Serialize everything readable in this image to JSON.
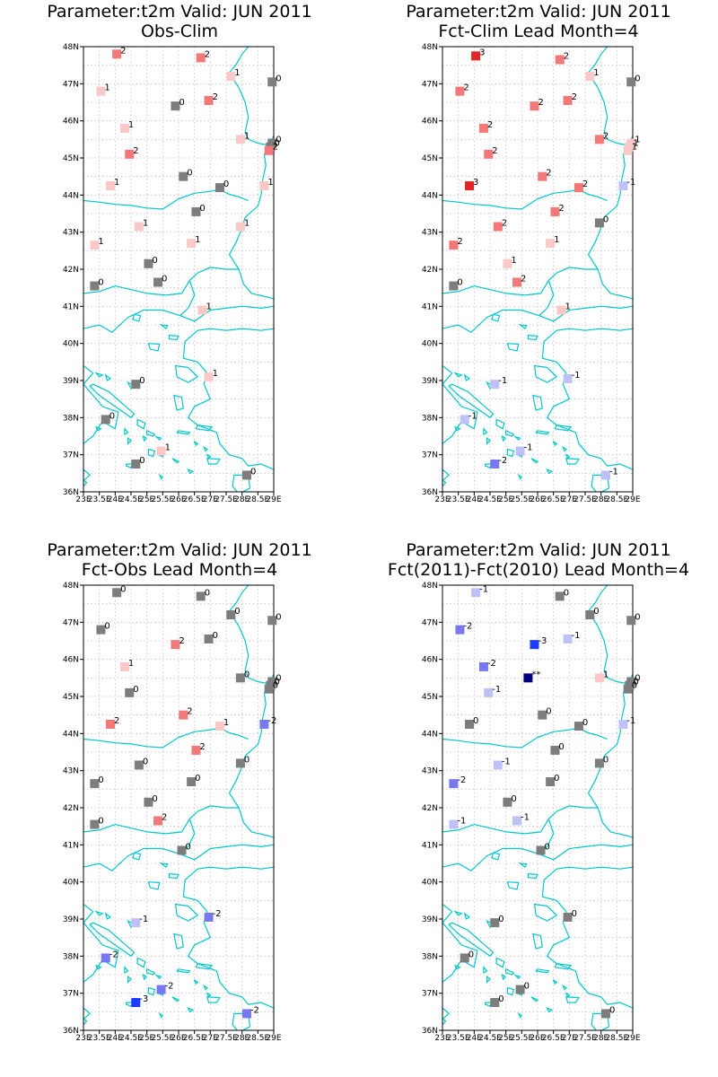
{
  "lat_labels": [
    "48N",
    "47N",
    "46N",
    "45N",
    "44N",
    "43N",
    "42N",
    "41N",
    "40N",
    "39N",
    "38N",
    "37N",
    "36N"
  ],
  "lon_labels": [
    "23E",
    "23.5E",
    "24E",
    "24.5E",
    "25E",
    "25.5E",
    "26E",
    "26.5E",
    "27E",
    "27.5E",
    "28E",
    "28.5E",
    "29E"
  ],
  "domain": {
    "lon": [
      23,
      29
    ],
    "lat": [
      36,
      48
    ]
  },
  "colors": {
    "coast": "#00c8c8",
    "grid": "#b4b4b4",
    "frame": "#000000",
    "m3": "#1e3cff",
    "m2": "#7878f0",
    "m1": "#c0c0f8",
    "z0": "#7d7d7d",
    "p1": "#fbc8c8",
    "p2": "#f57878",
    "p3": "#e12828",
    "na": "#000080"
  },
  "panels": [
    {
      "title_line1": "Parameter:t2m Valid: JUN 2011",
      "title_line2": "Obs-Clim",
      "stations": [
        {
          "lon": 24.05,
          "lat": 47.8,
          "v": "2"
        },
        {
          "lon": 26.7,
          "lat": 47.7,
          "v": "2"
        },
        {
          "lon": 27.65,
          "lat": 47.2,
          "v": "1"
        },
        {
          "lon": 28.95,
          "lat": 47.05,
          "v": "0"
        },
        {
          "lon": 23.55,
          "lat": 46.8,
          "v": "1"
        },
        {
          "lon": 26.95,
          "lat": 46.55,
          "v": "2"
        },
        {
          "lon": 25.9,
          "lat": 46.4,
          "v": "0"
        },
        {
          "lon": 24.3,
          "lat": 45.8,
          "v": "1"
        },
        {
          "lon": 24.45,
          "lat": 45.1,
          "v": "2"
        },
        {
          "lon": 27.95,
          "lat": 45.5,
          "v": "1"
        },
        {
          "lon": 28.95,
          "lat": 45.4,
          "v": "0"
        },
        {
          "lon": 28.9,
          "lat": 45.3,
          "v": "0"
        },
        {
          "lon": 28.85,
          "lat": 45.2,
          "v": "2"
        },
        {
          "lon": 26.15,
          "lat": 44.5,
          "v": "0"
        },
        {
          "lon": 23.85,
          "lat": 44.25,
          "v": "1"
        },
        {
          "lon": 27.3,
          "lat": 44.2,
          "v": "0"
        },
        {
          "lon": 28.7,
          "lat": 44.25,
          "v": "1"
        },
        {
          "lon": 26.55,
          "lat": 43.55,
          "v": "0"
        },
        {
          "lon": 24.75,
          "lat": 43.15,
          "v": "1"
        },
        {
          "lon": 27.95,
          "lat": 43.15,
          "v": "1"
        },
        {
          "lon": 23.35,
          "lat": 42.65,
          "v": "1"
        },
        {
          "lon": 26.4,
          "lat": 42.7,
          "v": "1"
        },
        {
          "lon": 25.05,
          "lat": 42.15,
          "v": "0"
        },
        {
          "lon": 25.35,
          "lat": 41.65,
          "v": "0"
        },
        {
          "lon": 23.35,
          "lat": 41.55,
          "v": "0"
        },
        {
          "lon": 26.75,
          "lat": 40.9,
          "v": "1"
        },
        {
          "lon": 24.65,
          "lat": 38.9,
          "v": "0"
        },
        {
          "lon": 26.95,
          "lat": 39.1,
          "v": "1"
        },
        {
          "lon": 23.7,
          "lat": 37.95,
          "v": "0"
        },
        {
          "lon": 25.45,
          "lat": 37.1,
          "v": "1"
        },
        {
          "lon": 24.65,
          "lat": 36.75,
          "v": "0"
        },
        {
          "lon": 28.15,
          "lat": 36.45,
          "v": "0"
        }
      ]
    },
    {
      "title_line1": "Parameter:t2m Valid: JUN 2011",
      "title_line2": "Fct-Clim Lead Month=4",
      "stations": [
        {
          "lon": 24.05,
          "lat": 47.75,
          "v": "3"
        },
        {
          "lon": 26.7,
          "lat": 47.65,
          "v": "2"
        },
        {
          "lon": 27.65,
          "lat": 47.2,
          "v": "1"
        },
        {
          "lon": 28.95,
          "lat": 47.05,
          "v": "0"
        },
        {
          "lon": 23.55,
          "lat": 46.8,
          "v": "2"
        },
        {
          "lon": 26.95,
          "lat": 46.55,
          "v": "2"
        },
        {
          "lon": 25.9,
          "lat": 46.4,
          "v": "2"
        },
        {
          "lon": 24.3,
          "lat": 45.8,
          "v": "2"
        },
        {
          "lon": 24.45,
          "lat": 45.1,
          "v": "2"
        },
        {
          "lon": 27.95,
          "lat": 45.5,
          "v": "2"
        },
        {
          "lon": 28.95,
          "lat": 45.4,
          "v": "1"
        },
        {
          "lon": 28.9,
          "lat": 45.3,
          "v": "1"
        },
        {
          "lon": 28.85,
          "lat": 45.2,
          "v": "1"
        },
        {
          "lon": 26.15,
          "lat": 44.5,
          "v": "2"
        },
        {
          "lon": 23.85,
          "lat": 44.25,
          "v": "3"
        },
        {
          "lon": 27.3,
          "lat": 44.2,
          "v": "2"
        },
        {
          "lon": 28.7,
          "lat": 44.25,
          "v": "-1"
        },
        {
          "lon": 26.55,
          "lat": 43.55,
          "v": "2"
        },
        {
          "lon": 24.75,
          "lat": 43.15,
          "v": "2"
        },
        {
          "lon": 27.95,
          "lat": 43.25,
          "v": "0"
        },
        {
          "lon": 23.35,
          "lat": 42.65,
          "v": "2"
        },
        {
          "lon": 26.4,
          "lat": 42.7,
          "v": "1"
        },
        {
          "lon": 25.05,
          "lat": 42.15,
          "v": "1"
        },
        {
          "lon": 25.35,
          "lat": 41.65,
          "v": "2"
        },
        {
          "lon": 23.35,
          "lat": 41.55,
          "v": "0"
        },
        {
          "lon": 26.75,
          "lat": 40.9,
          "v": "1"
        },
        {
          "lon": 24.65,
          "lat": 38.9,
          "v": "-1"
        },
        {
          "lon": 26.95,
          "lat": 39.05,
          "v": "-1"
        },
        {
          "lon": 23.7,
          "lat": 37.95,
          "v": "-1"
        },
        {
          "lon": 25.45,
          "lat": 37.1,
          "v": "-1"
        },
        {
          "lon": 24.65,
          "lat": 36.75,
          "v": "-2"
        },
        {
          "lon": 28.15,
          "lat": 36.45,
          "v": "-1"
        }
      ]
    },
    {
      "title_line1": "Parameter:t2m Valid: JUN 2011",
      "title_line2": "Fct-Obs Lead Month=4",
      "stations": [
        {
          "lon": 24.05,
          "lat": 47.8,
          "v": "0"
        },
        {
          "lon": 26.7,
          "lat": 47.7,
          "v": "0"
        },
        {
          "lon": 27.65,
          "lat": 47.2,
          "v": "0"
        },
        {
          "lon": 28.95,
          "lat": 47.05,
          "v": "0"
        },
        {
          "lon": 23.55,
          "lat": 46.8,
          "v": "0"
        },
        {
          "lon": 26.95,
          "lat": 46.55,
          "v": "0"
        },
        {
          "lon": 25.9,
          "lat": 46.4,
          "v": "2"
        },
        {
          "lon": 24.3,
          "lat": 45.8,
          "v": "1"
        },
        {
          "lon": 24.45,
          "lat": 45.1,
          "v": "0"
        },
        {
          "lon": 27.95,
          "lat": 45.5,
          "v": "0"
        },
        {
          "lon": 28.95,
          "lat": 45.4,
          "v": "0"
        },
        {
          "lon": 28.9,
          "lat": 45.3,
          "v": "0"
        },
        {
          "lon": 28.85,
          "lat": 45.2,
          "v": "0"
        },
        {
          "lon": 26.15,
          "lat": 44.5,
          "v": "2"
        },
        {
          "lon": 23.85,
          "lat": 44.25,
          "v": "2"
        },
        {
          "lon": 27.3,
          "lat": 44.2,
          "v": "1"
        },
        {
          "lon": 28.7,
          "lat": 44.25,
          "v": "-2"
        },
        {
          "lon": 26.55,
          "lat": 43.55,
          "v": "2"
        },
        {
          "lon": 24.75,
          "lat": 43.15,
          "v": "0"
        },
        {
          "lon": 27.95,
          "lat": 43.2,
          "v": "0"
        },
        {
          "lon": 23.35,
          "lat": 42.65,
          "v": "0"
        },
        {
          "lon": 26.4,
          "lat": 42.7,
          "v": "0"
        },
        {
          "lon": 25.05,
          "lat": 42.15,
          "v": "0"
        },
        {
          "lon": 25.35,
          "lat": 41.65,
          "v": "2"
        },
        {
          "lon": 23.35,
          "lat": 41.55,
          "v": "0"
        },
        {
          "lon": 26.1,
          "lat": 40.85,
          "v": "0"
        },
        {
          "lon": 24.65,
          "lat": 38.9,
          "v": "-1"
        },
        {
          "lon": 26.95,
          "lat": 39.05,
          "v": "-2"
        },
        {
          "lon": 23.7,
          "lat": 37.95,
          "v": "-2"
        },
        {
          "lon": 25.45,
          "lat": 37.1,
          "v": "-2"
        },
        {
          "lon": 24.65,
          "lat": 36.75,
          "v": "-3"
        },
        {
          "lon": 28.15,
          "lat": 36.45,
          "v": "-2"
        }
      ]
    },
    {
      "title_line1": "Parameter:t2m Valid: JUN 2011",
      "title_line2": "Fct(2011)-Fct(2010) Lead Month=4",
      "stations": [
        {
          "lon": 24.05,
          "lat": 47.8,
          "v": "-1"
        },
        {
          "lon": 26.7,
          "lat": 47.7,
          "v": "0"
        },
        {
          "lon": 27.65,
          "lat": 47.2,
          "v": "0"
        },
        {
          "lon": 28.95,
          "lat": 47.05,
          "v": "0"
        },
        {
          "lon": 23.55,
          "lat": 46.8,
          "v": "-2"
        },
        {
          "lon": 26.95,
          "lat": 46.55,
          "v": "-1"
        },
        {
          "lon": 25.9,
          "lat": 46.4,
          "v": "-3"
        },
        {
          "lon": 24.3,
          "lat": 45.8,
          "v": "-2"
        },
        {
          "lon": 24.45,
          "lat": 45.1,
          "v": "-1"
        },
        {
          "lon": 27.95,
          "lat": 45.5,
          "v": "1"
        },
        {
          "lon": 25.7,
          "lat": 45.5,
          "v": "**"
        },
        {
          "lon": 28.95,
          "lat": 45.4,
          "v": "0"
        },
        {
          "lon": 28.9,
          "lat": 45.3,
          "v": "0"
        },
        {
          "lon": 28.85,
          "lat": 45.2,
          "v": "0"
        },
        {
          "lon": 26.15,
          "lat": 44.5,
          "v": "0"
        },
        {
          "lon": 23.85,
          "lat": 44.25,
          "v": "0"
        },
        {
          "lon": 27.3,
          "lat": 44.2,
          "v": "0"
        },
        {
          "lon": 28.7,
          "lat": 44.25,
          "v": "-1"
        },
        {
          "lon": 26.55,
          "lat": 43.55,
          "v": "0"
        },
        {
          "lon": 24.75,
          "lat": 43.15,
          "v": "-1"
        },
        {
          "lon": 27.95,
          "lat": 43.2,
          "v": "0"
        },
        {
          "lon": 23.35,
          "lat": 42.65,
          "v": "-2"
        },
        {
          "lon": 26.4,
          "lat": 42.7,
          "v": "0"
        },
        {
          "lon": 25.05,
          "lat": 42.15,
          "v": "0"
        },
        {
          "lon": 25.35,
          "lat": 41.65,
          "v": "-1"
        },
        {
          "lon": 23.35,
          "lat": 41.55,
          "v": "-1"
        },
        {
          "lon": 26.1,
          "lat": 40.85,
          "v": "0"
        },
        {
          "lon": 24.65,
          "lat": 38.9,
          "v": "0"
        },
        {
          "lon": 26.95,
          "lat": 39.05,
          "v": "0"
        },
        {
          "lon": 23.7,
          "lat": 37.95,
          "v": "0"
        },
        {
          "lon": 25.45,
          "lat": 37.1,
          "v": "0"
        },
        {
          "lon": 24.65,
          "lat": 36.75,
          "v": "0"
        },
        {
          "lon": 28.15,
          "lat": 36.45,
          "v": "0"
        }
      ]
    }
  ]
}
